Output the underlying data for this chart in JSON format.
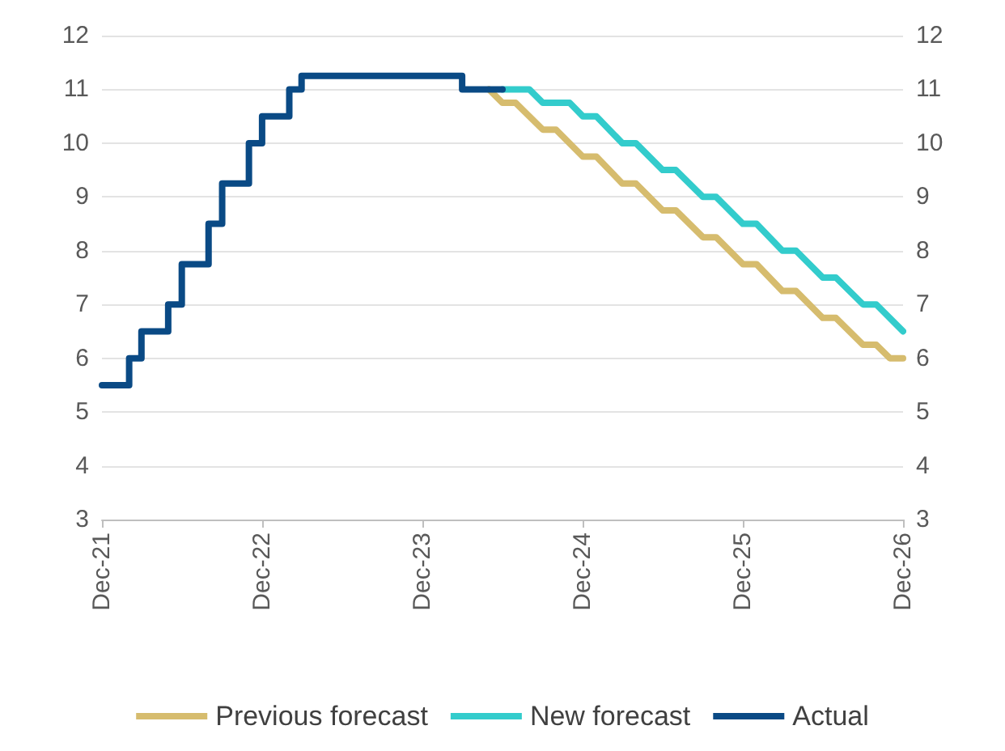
{
  "chart_data": {
    "type": "line",
    "xlim": [
      "2021-12",
      "2026-12"
    ],
    "xticks": [
      {
        "value": "2021-12",
        "label": "Dec-21"
      },
      {
        "value": "2022-12",
        "label": "Dec-22"
      },
      {
        "value": "2023-12",
        "label": "Dec-23"
      },
      {
        "value": "2024-12",
        "label": "Dec-24"
      },
      {
        "value": "2025-12",
        "label": "Dec-25"
      },
      {
        "value": "2026-12",
        "label": "Dec-26"
      }
    ],
    "ylim": [
      3,
      12
    ],
    "yticks": [
      3,
      4,
      5,
      6,
      7,
      8,
      9,
      10,
      11,
      12
    ],
    "y2lim": [
      3,
      12
    ],
    "y2ticks": [
      3,
      4,
      5,
      6,
      7,
      8,
      9,
      10,
      11,
      12
    ],
    "grid": "y",
    "legend": "bottom",
    "marker": "none",
    "line_style": "solid",
    "series": [
      {
        "name": "Previous forecast",
        "color": "#d6bc6e",
        "x": [
          "2024-05",
          "2024-06",
          "2024-07",
          "2024-09",
          "2024-10",
          "2024-12",
          "2025-01",
          "2025-03",
          "2025-04",
          "2025-06",
          "2025-07",
          "2025-09",
          "2025-10",
          "2025-12",
          "2026-01",
          "2026-03",
          "2026-04",
          "2026-06",
          "2026-07",
          "2026-09",
          "2026-10",
          "2026-11",
          "2026-12"
        ],
        "values": [
          11.0,
          10.75,
          10.75,
          10.25,
          10.25,
          9.75,
          9.75,
          9.25,
          9.25,
          8.75,
          8.75,
          8.25,
          8.25,
          7.75,
          7.75,
          7.25,
          7.25,
          6.75,
          6.75,
          6.25,
          6.25,
          6.0,
          6.0
        ]
      },
      {
        "name": "New forecast",
        "color": "#33cccc",
        "x": [
          "2024-06",
          "2024-08",
          "2024-09",
          "2024-11",
          "2024-12",
          "2025-01",
          "2025-03",
          "2025-04",
          "2025-06",
          "2025-07",
          "2025-09",
          "2025-10",
          "2025-12",
          "2026-01",
          "2026-03",
          "2026-04",
          "2026-06",
          "2026-07",
          "2026-09",
          "2026-10",
          "2026-12"
        ],
        "values": [
          11.0,
          11.0,
          10.75,
          10.75,
          10.5,
          10.5,
          10.0,
          10.0,
          9.5,
          9.5,
          9.0,
          9.0,
          8.5,
          8.5,
          8.0,
          8.0,
          7.5,
          7.5,
          7.0,
          7.0,
          6.5
        ]
      },
      {
        "name": "Actual",
        "type": "step",
        "color": "#0a4a85",
        "x": [
          "2021-12",
          "2022-02",
          "2022-03",
          "2022-05",
          "2022-06",
          "2022-08",
          "2022-09",
          "2022-11",
          "2022-12",
          "2023-02",
          "2023-03",
          "2024-03",
          "2024-06"
        ],
        "values": [
          5.5,
          6.0,
          6.5,
          7.0,
          7.75,
          8.5,
          9.25,
          10.0,
          10.5,
          11.0,
          11.25,
          11.0,
          11.0
        ]
      }
    ]
  }
}
